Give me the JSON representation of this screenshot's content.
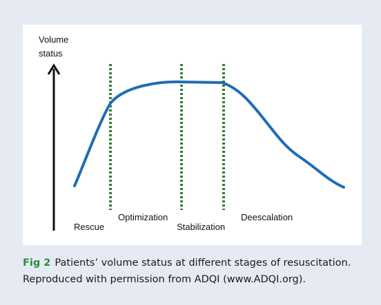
{
  "figure": {
    "y_axis_label": [
      "Volume",
      "status"
    ],
    "phases": [
      "Rescue",
      "Optimization",
      "Stabilization",
      "Deescalation"
    ],
    "caption": {
      "label": "Fig 2",
      "lines": [
        "Patients’ volume status at different stages of resuscitation.",
        "Reproduced with permission from ADQI (www.ADQI.org)."
      ]
    }
  }
}
